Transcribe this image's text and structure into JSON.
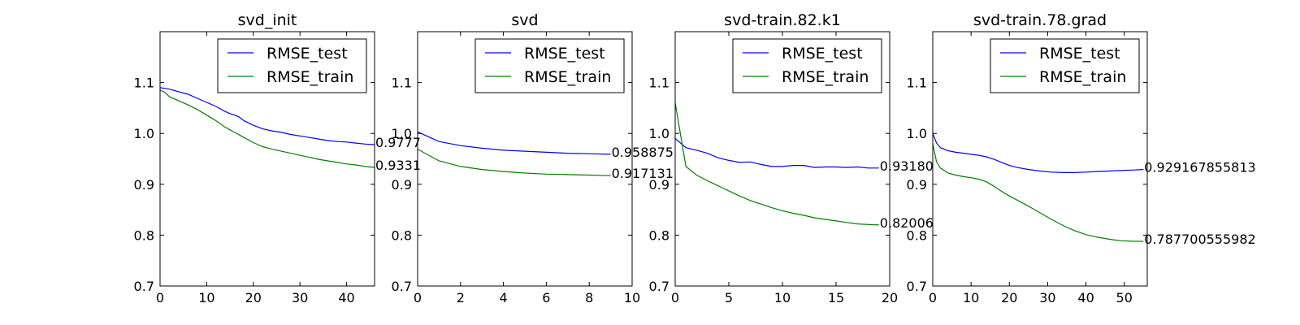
{
  "chart_data": [
    {
      "type": "line",
      "title": "svd_init",
      "xlim": [
        0,
        46
      ],
      "ylim": [
        0.7,
        1.2
      ],
      "xticks": [
        "0",
        "10",
        "20",
        "30",
        "40"
      ],
      "yticks": [
        "0.7",
        "0.8",
        "0.9",
        "1.0",
        "1.1"
      ],
      "legend": "top-right",
      "series": [
        {
          "name": "RMSE_test",
          "color": "#0000ff",
          "x": [
            0,
            2,
            4,
            6,
            8,
            10,
            12,
            14,
            15,
            16,
            17,
            18,
            20,
            22,
            24,
            26,
            28,
            30,
            32,
            34,
            36,
            38,
            40,
            42,
            44,
            46
          ],
          "y": [
            1.09,
            1.087,
            1.082,
            1.077,
            1.069,
            1.061,
            1.053,
            1.043,
            1.039,
            1.036,
            1.032,
            1.025,
            1.016,
            1.009,
            1.005,
            1.002,
            0.998,
            0.995,
            0.992,
            0.989,
            0.986,
            0.984,
            0.983,
            0.981,
            0.979,
            0.978
          ]
        },
        {
          "name": "RMSE_train",
          "color": "#008000",
          "x": [
            0,
            1,
            2,
            4,
            6,
            8,
            10,
            12,
            14,
            15,
            16,
            18,
            20,
            22,
            24,
            26,
            28,
            30,
            32,
            34,
            36,
            38,
            40,
            42,
            44,
            46
          ],
          "y": [
            1.085,
            1.081,
            1.072,
            1.064,
            1.056,
            1.047,
            1.036,
            1.025,
            1.012,
            1.007,
            1.002,
            0.992,
            0.982,
            0.974,
            0.969,
            0.965,
            0.961,
            0.957,
            0.953,
            0.949,
            0.946,
            0.943,
            0.94,
            0.938,
            0.935,
            0.933
          ]
        }
      ],
      "end_labels": [
        "0.9777",
        "0.9331"
      ]
    },
    {
      "type": "line",
      "title": "svd",
      "xlim": [
        0,
        10
      ],
      "ylim": [
        0.7,
        1.2
      ],
      "xticks": [
        "0",
        "2",
        "4",
        "6",
        "8",
        "10"
      ],
      "yticks": [
        "0.7",
        "0.8",
        "0.9",
        "1.0",
        "1.1"
      ],
      "legend": "top-right",
      "series": [
        {
          "name": "RMSE_test",
          "color": "#0000ff",
          "x": [
            0,
            1,
            2,
            3,
            4,
            5,
            6,
            7,
            8,
            9
          ],
          "y": [
            1.003,
            0.984,
            0.976,
            0.971,
            0.967,
            0.965,
            0.963,
            0.961,
            0.96,
            0.959
          ]
        },
        {
          "name": "RMSE_train",
          "color": "#008000",
          "x": [
            0,
            1,
            2,
            3,
            4,
            5,
            6,
            7,
            8,
            9
          ],
          "y": [
            0.969,
            0.946,
            0.935,
            0.929,
            0.925,
            0.922,
            0.92,
            0.919,
            0.918,
            0.917
          ]
        }
      ],
      "end_labels": [
        "0.958875",
        "0.917131"
      ]
    },
    {
      "type": "line",
      "title": "svd-train.82.k1",
      "xlim": [
        0,
        20
      ],
      "ylim": [
        0.7,
        1.2
      ],
      "xticks": [
        "0",
        "5",
        "10",
        "15",
        "20"
      ],
      "yticks": [
        "0.7",
        "0.8",
        "0.9",
        "1.0",
        "1.1"
      ],
      "legend": "top-right",
      "series": [
        {
          "name": "RMSE_test",
          "color": "#0000ff",
          "x": [
            0,
            1,
            2,
            3,
            4,
            5,
            6,
            7,
            8,
            9,
            10,
            11,
            12,
            13,
            14,
            15,
            16,
            17,
            18,
            19
          ],
          "y": [
            0.99,
            0.972,
            0.967,
            0.961,
            0.952,
            0.947,
            0.943,
            0.944,
            0.939,
            0.935,
            0.935,
            0.937,
            0.937,
            0.933,
            0.934,
            0.934,
            0.933,
            0.934,
            0.932,
            0.932
          ]
        },
        {
          "name": "RMSE_train",
          "color": "#008000",
          "x": [
            0,
            1,
            2,
            3,
            4,
            5,
            6,
            7,
            8,
            9,
            10,
            11,
            12,
            13,
            14,
            15,
            16,
            17,
            18,
            19
          ],
          "y": [
            1.06,
            0.935,
            0.918,
            0.907,
            0.897,
            0.887,
            0.877,
            0.868,
            0.861,
            0.854,
            0.848,
            0.843,
            0.839,
            0.834,
            0.831,
            0.828,
            0.825,
            0.822,
            0.821,
            0.82
          ]
        }
      ],
      "end_labels": [
        "0.93180",
        "0.82006"
      ]
    },
    {
      "type": "line",
      "title": "svd-train.78.grad",
      "xlim": [
        0,
        56
      ],
      "ylim": [
        0.7,
        1.2
      ],
      "xticks": [
        "0",
        "10",
        "20",
        "30",
        "40",
        "50"
      ],
      "yticks": [
        "0.7",
        "0.8",
        "0.9",
        "1.0",
        "1.1"
      ],
      "legend": "top-right",
      "series": [
        {
          "name": "RMSE_test",
          "color": "#0000ff",
          "x": [
            0,
            1,
            2,
            4,
            6,
            8,
            10,
            12,
            14,
            16,
            18,
            20,
            22,
            25,
            28,
            31,
            34,
            37,
            40,
            43,
            46,
            49,
            52,
            55
          ],
          "y": [
            1.0,
            0.981,
            0.972,
            0.966,
            0.963,
            0.961,
            0.959,
            0.957,
            0.954,
            0.949,
            0.943,
            0.937,
            0.933,
            0.929,
            0.926,
            0.924,
            0.923,
            0.923,
            0.924,
            0.925,
            0.926,
            0.927,
            0.928,
            0.929
          ]
        },
        {
          "name": "RMSE_train",
          "color": "#008000",
          "x": [
            0,
            1,
            2,
            4,
            6,
            8,
            10,
            12,
            14,
            16,
            18,
            20,
            22,
            25,
            28,
            31,
            34,
            37,
            40,
            43,
            46,
            49,
            52,
            55
          ],
          "y": [
            0.98,
            0.944,
            0.932,
            0.922,
            0.918,
            0.915,
            0.913,
            0.91,
            0.905,
            0.896,
            0.886,
            0.877,
            0.869,
            0.857,
            0.844,
            0.831,
            0.819,
            0.809,
            0.801,
            0.796,
            0.792,
            0.789,
            0.788,
            0.7877
          ]
        }
      ],
      "end_labels": [
        "0.929167855813",
        "0.787700555982"
      ]
    }
  ]
}
